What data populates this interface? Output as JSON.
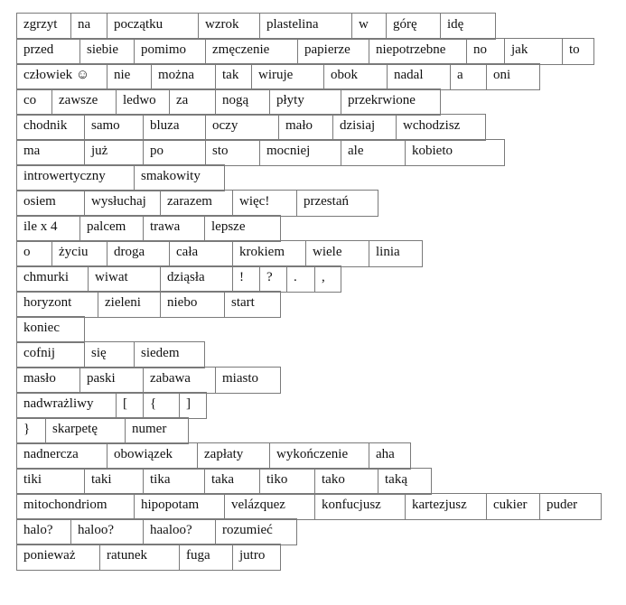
{
  "rows": [
    [
      "zgrzyt",
      "na",
      "początku",
      "wzrok",
      "plastelina",
      "w",
      "górę",
      "idę"
    ],
    [
      "przed",
      "siebie",
      "pomimo",
      "zmęczenie",
      "papierze",
      "niepotrzebne",
      "no",
      "jak",
      "to"
    ],
    [
      "człowiek ☺",
      "nie",
      "można",
      "tak",
      "wiruje",
      "obok",
      "nadal",
      "a",
      "oni"
    ],
    [
      "co",
      "zawsze",
      "ledwo",
      "za",
      "nogą",
      "płyty",
      "przekrwione"
    ],
    [
      "chodnik",
      "samo",
      "bluza",
      "oczy",
      "mało",
      "dzisiaj",
      "wchodzisz"
    ],
    [
      "ma",
      "już",
      "po",
      "sto",
      "mocniej",
      "ale",
      "kobieto"
    ],
    [
      "introwertyczny",
      "smakowity"
    ],
    [
      "osiem",
      "wysłuchaj",
      "zarazem",
      "więc!",
      "przestań"
    ],
    [
      "ile x 4",
      "palcem",
      "trawa",
      "lepsze"
    ],
    [
      "o",
      "życiu",
      "droga",
      "cała",
      "krokiem",
      "wiele",
      "linia"
    ],
    [
      "chmurki",
      "wiwat",
      "dziąsła",
      "!",
      "?",
      ".",
      ","
    ],
    [
      "horyzont",
      "zieleni",
      "niebo",
      "start"
    ],
    [
      "koniec"
    ],
    [
      "cofnij",
      "się",
      "siedem"
    ],
    [
      "masło",
      "paski",
      "zabawa",
      "miasto"
    ],
    [
      "nadwrażliwy",
      "[",
      "{",
      "]"
    ],
    [
      "}",
      "skarpetę",
      "numer"
    ],
    [
      "nadnercza",
      "obowiązek",
      "zapłaty",
      "wykończenie",
      "aha"
    ],
    [
      "tiki",
      "taki",
      "tika",
      "taka",
      "tiko",
      "tako",
      "taką"
    ],
    [
      "mitochondriom",
      "hipopotam",
      "velázquez",
      "konfucjusz",
      "kartezjusz",
      "cukier",
      "puder"
    ],
    [
      "halo?",
      "haloo?",
      "haaloo?",
      "rozumieć"
    ],
    [
      "ponieważ",
      "ratunek",
      "fuga",
      "jutro"
    ]
  ]
}
